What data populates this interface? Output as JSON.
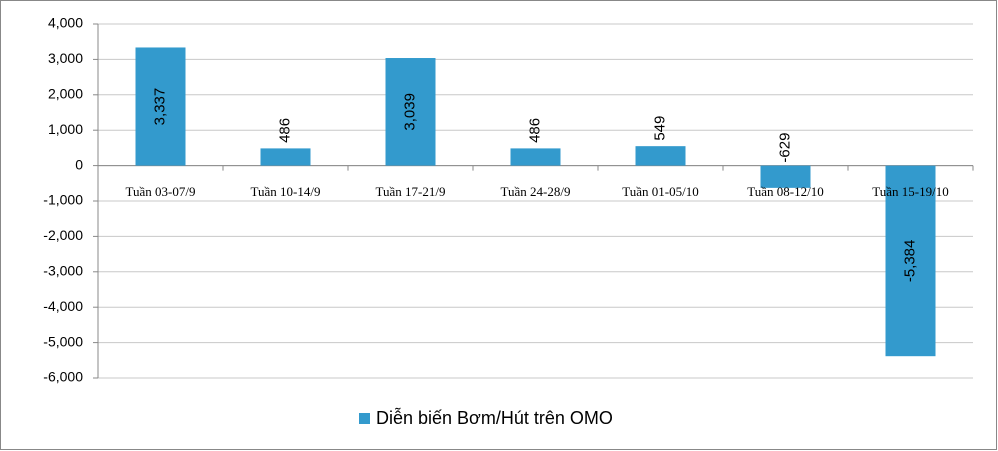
{
  "chart_data": {
    "type": "bar",
    "categories": [
      "Tuần 03-07/9",
      "Tuần 10-14/9",
      "Tuần 17-21/9",
      "Tuần 24-28/9",
      "Tuần 01-05/10",
      "Tuần 08-12/10",
      "Tuần 15-19/10"
    ],
    "series": [
      {
        "name": "Diễn biến Bơm/Hút trên OMO",
        "color": "#339acd",
        "values": [
          3337,
          486,
          3039,
          486,
          549,
          -629,
          -5384
        ],
        "value_labels": [
          "3,337",
          "486",
          "3,039",
          "486",
          "549",
          "-629",
          "-5,384"
        ]
      }
    ],
    "ylim": [
      -6000,
      4000
    ],
    "yticks": [
      {
        "value": -6000,
        "label": "-6,000"
      },
      {
        "value": -5000,
        "label": "-5,000"
      },
      {
        "value": -4000,
        "label": "-4,000"
      },
      {
        "value": -3000,
        "label": "-3,000"
      },
      {
        "value": -2000,
        "label": "-2,000"
      },
      {
        "value": -1000,
        "label": "-1,000"
      },
      0,
      {
        "value": 1000,
        "label": "1,000"
      },
      {
        "value": 2000,
        "label": "2,000"
      },
      {
        "value": 3000,
        "label": "3,000"
      },
      {
        "value": 4000,
        "label": "4,000"
      }
    ],
    "grid": true,
    "legend": "bottom"
  }
}
